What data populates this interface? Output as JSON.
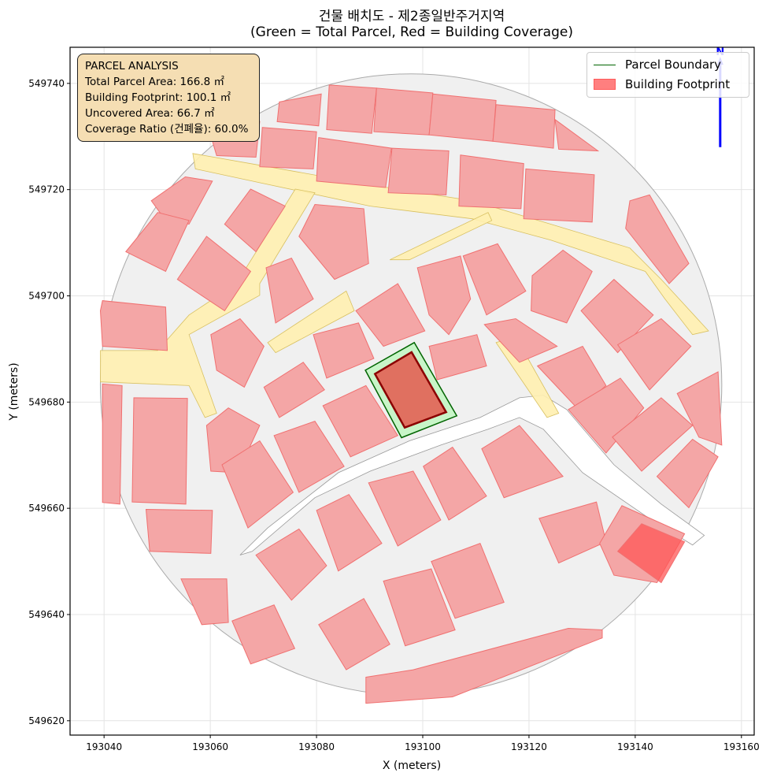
{
  "title_line1": "건물 배치도 - 제2종일반주거지역",
  "title_line2": "(Green = Total Parcel, Red = Building Coverage)",
  "info_box": {
    "heading": "PARCEL ANALYSIS",
    "lines": [
      "Total Parcel Area: 166.8 ㎡",
      "Building Footprint: 100.1 ㎡",
      "Uncovered Area: 66.7 ㎡",
      "Coverage Ratio (건폐율): 60.0%"
    ]
  },
  "legend": {
    "items": [
      "Parcel Boundary",
      "Building Footprint"
    ]
  },
  "colors": {
    "parcel_edge": "#006400",
    "parcel_fill": "#c8f5c8",
    "building_target_fill": "#e07060",
    "building_target_edge": "#8b0000",
    "context_building_fill": "#f4a6a6",
    "context_building_edge": "#f07070",
    "road_fill": "#fff0b0",
    "road_edge": "#d8c060",
    "study_area": "#f0f0f0",
    "north_arrow": "#0000ff"
  },
  "chart_data": {
    "type": "map",
    "title": "건물 배치도 - 제2종일반주거지역 (Green = Total Parcel, Red = Building Coverage)",
    "xlabel": "X (meters)",
    "ylabel": "Y (meters)",
    "xlim": [
      193033.6,
      193162.4
    ],
    "ylim": [
      549617.3,
      549746.8
    ],
    "xticks": [
      193040,
      193060,
      193080,
      193100,
      193120,
      193140,
      193160
    ],
    "yticks": [
      549620,
      549640,
      549660,
      549680,
      549700,
      549720,
      549740
    ],
    "grid": true,
    "legend_position": "top-right",
    "local_origin": [
      193040,
      549620
    ],
    "coords_note_units": "meters relative to local_origin",
    "north_arrow": {
      "label": "N",
      "x": 193156,
      "y_from": 549728,
      "y_to": 549745
    },
    "study_area": {
      "center": [
        57.8,
        63.3
      ],
      "radius": 58.5
    },
    "target_parcel": [
      [
        49.2,
        66.0
      ],
      [
        58.4,
        71.2
      ],
      [
        66.4,
        57.4
      ],
      [
        56.0,
        53.3
      ]
    ],
    "target_building": [
      [
        51.0,
        65.3
      ],
      [
        57.9,
        69.4
      ],
      [
        64.4,
        58.1
      ],
      [
        56.6,
        55.2
      ]
    ],
    "road_cut": [
      [
        25.6,
        31.2
      ],
      [
        30.8,
        36.3
      ],
      [
        44.1,
        46.7
      ],
      [
        57.5,
        52.7
      ],
      [
        70.8,
        57.1
      ],
      [
        78.2,
        60.8
      ],
      [
        82.7,
        61.3
      ],
      [
        87.1,
        58.6
      ],
      [
        96,
        48.2
      ],
      [
        104.9,
        40.8
      ],
      [
        113,
        34.9
      ],
      [
        110.8,
        33.1
      ],
      [
        101.9,
        38.6
      ],
      [
        90.1,
        46.7
      ],
      [
        82.7,
        54.9
      ],
      [
        78.2,
        57.1
      ],
      [
        72.3,
        54.9
      ],
      [
        63.4,
        51.9
      ],
      [
        50.1,
        47
      ],
      [
        39.7,
        42
      ],
      [
        27.9,
        31.9
      ]
    ],
    "roads": [
      [
        [
          16.7,
          106.8
        ],
        [
          29.3,
          104.6
        ],
        [
          50.1,
          100.9
        ],
        [
          69.3,
          97.9
        ],
        [
          84.1,
          93.5
        ],
        [
          99,
          89
        ],
        [
          104.9,
          83.1
        ],
        [
          113.8,
          73.4
        ],
        [
          110.8,
          72.7
        ],
        [
          105.6,
          79.4
        ],
        [
          101.9,
          84.6
        ],
        [
          84.1,
          90.5
        ],
        [
          69.3,
          94.5
        ],
        [
          50.1,
          96.9
        ],
        [
          29.3,
          101.3
        ],
        [
          17.2,
          103.9
        ]
      ],
      [
        [
          36,
          100.1
        ],
        [
          39.7,
          99.4
        ],
        [
          29.3,
          82.3
        ],
        [
          29.3,
          80.1
        ],
        [
          16,
          72.7
        ],
        [
          21.2,
          57.9
        ],
        [
          19,
          57.1
        ],
        [
          16,
          63.1
        ],
        [
          -0.7,
          63.8
        ],
        [
          -0.7,
          69.7
        ],
        [
          10.1,
          69.7
        ],
        [
          16,
          76.4
        ],
        [
          24.9,
          82.3
        ]
      ],
      [
        [
          30.8,
          71.2
        ],
        [
          45.6,
          80.9
        ],
        [
          47.1,
          77.2
        ],
        [
          32.3,
          69.3
        ]
      ],
      [
        [
          73.8,
          71.2
        ],
        [
          77.5,
          72.3
        ],
        [
          85.6,
          57.9
        ],
        [
          83.4,
          57.1
        ]
      ],
      [
        [
          53.8,
          86.8
        ],
        [
          72.3,
          95.7
        ],
        [
          73,
          94.2
        ],
        [
          57.5,
          86.8
        ]
      ]
    ],
    "context_buildings": [
      [
        [
          33,
          116.5
        ],
        [
          40.9,
          118
        ],
        [
          40.4,
          112
        ],
        [
          32.6,
          112.8
        ]
      ],
      [
        [
          42.4,
          119.7
        ],
        [
          51.3,
          119.1
        ],
        [
          50.4,
          110.6
        ],
        [
          41.9,
          111.3
        ]
      ],
      [
        [
          51.3,
          119.1
        ],
        [
          61.9,
          118.2
        ],
        [
          61.2,
          110.3
        ],
        [
          50.8,
          110.9
        ]
      ],
      [
        [
          61.9,
          118
        ],
        [
          73.8,
          116.8
        ],
        [
          73.2,
          109.1
        ],
        [
          61.2,
          110.3
        ]
      ],
      [
        [
          73.8,
          116
        ],
        [
          84.9,
          115
        ],
        [
          84.6,
          107.8
        ],
        [
          73.2,
          109.1
        ]
      ],
      [
        [
          84.9,
          113.2
        ],
        [
          93,
          107.3
        ],
        [
          85.6,
          107.6
        ]
      ],
      [
        [
          20.4,
          109.1
        ],
        [
          29.3,
          112.8
        ],
        [
          28.6,
          106.1
        ],
        [
          21.2,
          106.4
        ]
      ],
      [
        [
          29.8,
          111.7
        ],
        [
          40,
          110.9
        ],
        [
          39.4,
          103.9
        ],
        [
          29.3,
          104.3
        ]
      ],
      [
        [
          40.4,
          109.8
        ],
        [
          54.1,
          107.8
        ],
        [
          53,
          100.4
        ],
        [
          40,
          101.6
        ]
      ],
      [
        [
          54.2,
          107.8
        ],
        [
          64.9,
          107.3
        ],
        [
          64.4,
          99
        ],
        [
          53.5,
          99.4
        ]
      ],
      [
        [
          67.1,
          106.5
        ],
        [
          79,
          104.9
        ],
        [
          78.5,
          96.4
        ],
        [
          66.8,
          96.9
        ]
      ],
      [
        [
          79.4,
          103.9
        ],
        [
          92.3,
          102.8
        ],
        [
          91.9,
          93.9
        ],
        [
          79,
          94.5
        ]
      ],
      [
        [
          8.9,
          97.9
        ],
        [
          15.3,
          102.4
        ],
        [
          20.4,
          101.6
        ],
        [
          16,
          93.5
        ],
        [
          11.6,
          94.2
        ]
      ],
      [
        [
          4.1,
          88.3
        ],
        [
          10.1,
          95.7
        ],
        [
          16,
          94.2
        ],
        [
          11.6,
          84.6
        ]
      ],
      [
        [
          13.8,
          83.1
        ],
        [
          19.3,
          91.2
        ],
        [
          27.6,
          84.6
        ],
        [
          22.7,
          77.2
        ]
      ],
      [
        [
          22.7,
          93.5
        ],
        [
          27.6,
          100.1
        ],
        [
          34.1,
          96.9
        ],
        [
          28.6,
          88.3
        ]
      ],
      [
        [
          36.7,
          91.2
        ],
        [
          39.7,
          97.2
        ],
        [
          48.9,
          96.4
        ],
        [
          49.8,
          86.1
        ],
        [
          43.4,
          83.1
        ]
      ],
      [
        [
          30.5,
          85.3
        ],
        [
          35.3,
          87.1
        ],
        [
          39.4,
          79.4
        ],
        [
          32.3,
          74.9
        ]
      ],
      [
        [
          -0.7,
          77.2
        ],
        [
          -0.3,
          79.1
        ],
        [
          11.6,
          77.9
        ],
        [
          11.9,
          69.7
        ],
        [
          -0.3,
          70.5
        ]
      ],
      [
        [
          20.1,
          72.7
        ],
        [
          25.6,
          75.7
        ],
        [
          30.1,
          70.5
        ],
        [
          26.4,
          62.8
        ],
        [
          21.2,
          66
        ]
      ],
      [
        [
          30.1,
          62.8
        ],
        [
          37.5,
          67.5
        ],
        [
          41.5,
          62.3
        ],
        [
          33,
          57.1
        ]
      ],
      [
        [
          39.4,
          72.7
        ],
        [
          47.9,
          74.9
        ],
        [
          50.8,
          68.2
        ],
        [
          41.9,
          64.5
        ]
      ],
      [
        [
          47.4,
          77.2
        ],
        [
          55.3,
          82.3
        ],
        [
          60.4,
          73.4
        ],
        [
          52.6,
          70.5
        ]
      ],
      [
        [
          59,
          85.3
        ],
        [
          67.1,
          87.5
        ],
        [
          69,
          79.4
        ],
        [
          64.9,
          72.7
        ],
        [
          61.2,
          76.4
        ]
      ],
      [
        [
          67.6,
          87.5
        ],
        [
          74.1,
          89.8
        ],
        [
          79.4,
          80.9
        ],
        [
          72,
          76.4
        ]
      ],
      [
        [
          80.6,
          83.8
        ],
        [
          86.4,
          88.6
        ],
        [
          91.9,
          84.6
        ],
        [
          87.1,
          74.9
        ],
        [
          80.4,
          77.2
        ]
      ],
      [
        [
          71.6,
          74.6
        ],
        [
          77.5,
          75.7
        ],
        [
          85.3,
          70.5
        ],
        [
          78.2,
          67.5
        ]
      ],
      [
        [
          61.2,
          70.5
        ],
        [
          70.2,
          72.7
        ],
        [
          72,
          66.8
        ],
        [
          62.7,
          64.2
        ]
      ],
      [
        [
          89.8,
          77.2
        ],
        [
          96,
          83.1
        ],
        [
          103.4,
          76.4
        ],
        [
          96.7,
          69.3
        ]
      ],
      [
        [
          81.6,
          66.8
        ],
        [
          90.1,
          70.5
        ],
        [
          94.5,
          63.1
        ],
        [
          89.3,
          58.6
        ]
      ],
      [
        [
          87.4,
          58.6
        ],
        [
          97.2,
          64.5
        ],
        [
          101.6,
          58.9
        ],
        [
          94.5,
          50.4
        ]
      ],
      [
        [
          96.7,
          70.8
        ],
        [
          104.9,
          75.7
        ],
        [
          110.5,
          70.5
        ],
        [
          102.7,
          62.3
        ]
      ],
      [
        [
          95.7,
          53.4
        ],
        [
          104.9,
          60.8
        ],
        [
          110.8,
          55.6
        ],
        [
          101.2,
          47
        ]
      ],
      [
        [
          104.1,
          46
        ],
        [
          110.8,
          53
        ],
        [
          115.6,
          49.7
        ],
        [
          110.1,
          40.1
        ]
      ],
      [
        [
          107.9,
          61.6
        ],
        [
          115.6,
          65.7
        ],
        [
          116.3,
          51.9
        ],
        [
          112,
          53.4
        ]
      ],
      [
        [
          99,
          97.9
        ],
        [
          102.7,
          99
        ],
        [
          110.1,
          86.1
        ],
        [
          106.4,
          82.3
        ],
        [
          98.2,
          92.7
        ]
      ],
      [
        [
          -0.3,
          63.4
        ],
        [
          3.4,
          63.1
        ],
        [
          3,
          40.8
        ],
        [
          -0.3,
          41.1
        ]
      ],
      [
        [
          5.6,
          60.8
        ],
        [
          15.7,
          60.7
        ],
        [
          15.4,
          40.8
        ],
        [
          5.3,
          41.2
        ]
      ],
      [
        [
          7.9,
          39.8
        ],
        [
          20.4,
          39.6
        ],
        [
          20.1,
          31.5
        ],
        [
          8.6,
          31.9
        ]
      ],
      [
        [
          14.5,
          26.7
        ],
        [
          23.1,
          26.7
        ],
        [
          23.4,
          18.5
        ],
        [
          18.4,
          18.1
        ]
      ],
      [
        [
          19.3,
          55.6
        ],
        [
          23.4,
          58.9
        ],
        [
          29.3,
          55.6
        ],
        [
          25.2,
          46.7
        ],
        [
          20.1,
          47
        ]
      ],
      [
        [
          22.2,
          48.2
        ],
        [
          29.3,
          52.7
        ],
        [
          35.6,
          43
        ],
        [
          27.1,
          36.3
        ]
      ],
      [
        [
          32,
          53.7
        ],
        [
          39.7,
          56.4
        ],
        [
          45.2,
          47.9
        ],
        [
          36.7,
          43
        ]
      ],
      [
        [
          41.2,
          59.3
        ],
        [
          49.3,
          63.1
        ],
        [
          55.3,
          53.7
        ],
        [
          46.4,
          49.7
        ]
      ],
      [
        [
          49.8,
          44.8
        ],
        [
          58.2,
          47
        ],
        [
          63.4,
          37.8
        ],
        [
          55.3,
          32.9
        ]
      ],
      [
        [
          60.1,
          47.9
        ],
        [
          65.6,
          51.5
        ],
        [
          72,
          42.3
        ],
        [
          64.9,
          37.8
        ]
      ],
      [
        [
          71.1,
          51.2
        ],
        [
          78.2,
          55.6
        ],
        [
          86.4,
          46
        ],
        [
          75.3,
          42
        ]
      ],
      [
        [
          40,
          39.6
        ],
        [
          46.1,
          42.6
        ],
        [
          52.3,
          33.4
        ],
        [
          44.1,
          28.2
        ]
      ],
      [
        [
          28.6,
          31.2
        ],
        [
          36.7,
          36.1
        ],
        [
          41.9,
          29.2
        ],
        [
          35.3,
          22.7
        ]
      ],
      [
        [
          61.6,
          30
        ],
        [
          70.8,
          33.4
        ],
        [
          75.3,
          22.3
        ],
        [
          66.1,
          19.3
        ]
      ],
      [
        [
          52.6,
          26.3
        ],
        [
          61.6,
          28.6
        ],
        [
          66.1,
          17.1
        ],
        [
          56.7,
          14.1
        ]
      ],
      [
        [
          40.4,
          18.1
        ],
        [
          48.9,
          23
        ],
        [
          53.8,
          14.4
        ],
        [
          45.6,
          9.6
        ]
      ],
      [
        [
          24.1,
          18.8
        ],
        [
          32,
          21.8
        ],
        [
          35.9,
          13.6
        ],
        [
          27.6,
          10.7
        ]
      ],
      [
        [
          81.9,
          38.1
        ],
        [
          92.7,
          41.2
        ],
        [
          94.5,
          33.7
        ],
        [
          85.6,
          29.7
        ]
      ],
      [
        [
          93.3,
          33.4
        ],
        [
          97.5,
          40.5
        ],
        [
          109.3,
          35.2
        ],
        [
          104.1,
          26
        ],
        [
          96,
          27.4
        ]
      ],
      [
        [
          96.7,
          31.9
        ],
        [
          101.2,
          37.1
        ],
        [
          109.3,
          33.7
        ],
        [
          104.9,
          26
        ]
      ],
      [
        [
          49.3,
          8.2
        ],
        [
          58.2,
          9.6
        ],
        [
          87.4,
          17.4
        ],
        [
          93.8,
          17.1
        ],
        [
          93.8,
          15.6
        ],
        [
          65.6,
          4.5
        ],
        [
          49.3,
          3.3
        ]
      ]
    ]
  }
}
